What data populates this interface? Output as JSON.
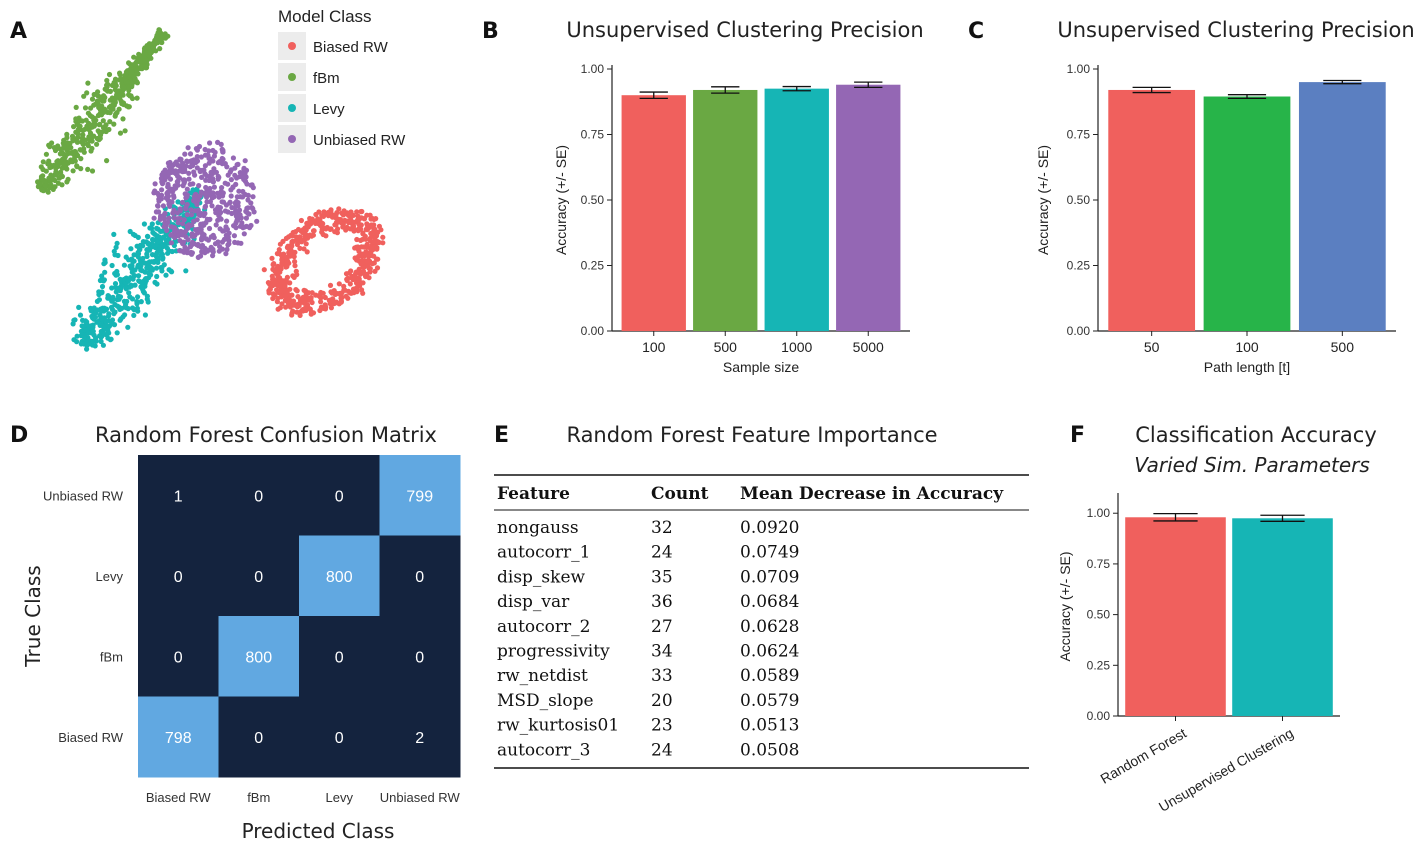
{
  "panels": {
    "A": {
      "letter": "A",
      "legend_title": "Model Class",
      "classes": [
        {
          "name": "Biased RW",
          "color": "#F0605D"
        },
        {
          "name": "fBm",
          "color": "#6AA843"
        },
        {
          "name": "Levy",
          "color": "#16B5B5"
        },
        {
          "name": "Unbiased RW",
          "color": "#9467B4"
        }
      ]
    },
    "B": {
      "letter": "B"
    },
    "C": {
      "letter": "C"
    },
    "D": {
      "letter": "D"
    },
    "E": {
      "letter": "E",
      "title": "Random Forest Feature Importance",
      "headers": [
        "Feature",
        "Count",
        "Mean Decrease in Accuracy"
      ],
      "rows": [
        [
          "nongauss",
          "32",
          "0.0920"
        ],
        [
          "autocorr_1",
          "24",
          "0.0749"
        ],
        [
          "disp_skew",
          "35",
          "0.0709"
        ],
        [
          "disp_var",
          "36",
          "0.0684"
        ],
        [
          "autocorr_2",
          "27",
          "0.0628"
        ],
        [
          "progressivity",
          "34",
          "0.0624"
        ],
        [
          "rw_netdist",
          "33",
          "0.0589"
        ],
        [
          "MSD_slope",
          "20",
          "0.0579"
        ],
        [
          "rw_kurtosis01",
          "23",
          "0.0513"
        ],
        [
          "autocorr_3",
          "24",
          "0.0508"
        ]
      ]
    },
    "F": {
      "letter": "F"
    }
  },
  "chart_data": [
    {
      "id": "A",
      "type": "scatter",
      "legend_title": "Model Class",
      "series": [
        {
          "name": "fBm"
        },
        {
          "name": "Unbiased RW"
        },
        {
          "name": "Levy"
        },
        {
          "name": "Biased RW"
        }
      ]
    },
    {
      "id": "B",
      "type": "bar",
      "title": "Unsupervised Clustering Precision",
      "xlabel": "Sample size",
      "ylabel": "Accuracy (+/- SE)",
      "categories": [
        "100",
        "500",
        "1000",
        "5000"
      ],
      "values": [
        0.9,
        0.92,
        0.925,
        0.94
      ],
      "errors": [
        0.012,
        0.012,
        0.008,
        0.01
      ],
      "colors": [
        "#F0605D",
        "#6AA843",
        "#16B5B5",
        "#9467B4"
      ],
      "ylim": [
        0,
        1
      ],
      "yticks": [
        "0.00",
        "0.25",
        "0.50",
        "0.75",
        "1.00"
      ]
    },
    {
      "id": "C",
      "type": "bar",
      "title": "Unsupervised Clustering Precision",
      "xlabel": "Path length [t]",
      "ylabel": "Accuracy (+/- SE)",
      "categories": [
        "50",
        "100",
        "500"
      ],
      "values": [
        0.92,
        0.895,
        0.95
      ],
      "errors": [
        0.01,
        0.007,
        0.006
      ],
      "colors": [
        "#F0605D",
        "#27B449",
        "#5B7FC1"
      ],
      "ylim": [
        0,
        1
      ],
      "yticks": [
        "0.00",
        "0.25",
        "0.50",
        "0.75",
        "1.00"
      ]
    },
    {
      "id": "D",
      "type": "heatmap",
      "title": "Random Forest Confusion Matrix",
      "xlabel": "Predicted Class",
      "ylabel": "True Class",
      "x_categories": [
        "Biased RW",
        "fBm",
        "Levy",
        "Unbiased RW"
      ],
      "y_categories": [
        "Unbiased RW",
        "Levy",
        "fBm",
        "Biased RW"
      ],
      "matrix": [
        [
          1,
          0,
          0,
          799
        ],
        [
          0,
          0,
          800,
          0
        ],
        [
          0,
          800,
          0,
          0
        ],
        [
          798,
          0,
          0,
          2
        ]
      ],
      "colors": {
        "low": "#14233E",
        "high": "#61A8E1"
      }
    },
    {
      "id": "F",
      "type": "bar",
      "title": "Classification Accuracy",
      "subtitle": "Varied Sim. Parameters",
      "xlabel": "",
      "ylabel": "Accuracy (+/- SE)",
      "categories": [
        "Random Forest",
        "Unsupervised Clustering"
      ],
      "values": [
        0.98,
        0.975
      ],
      "errors": [
        0.018,
        0.015
      ],
      "colors": [
        "#F0605D",
        "#16B5B5"
      ],
      "ylim": [
        0,
        1.08
      ],
      "yticks": [
        "0.00",
        "0.25",
        "0.50",
        "0.75",
        "1.00"
      ]
    }
  ]
}
